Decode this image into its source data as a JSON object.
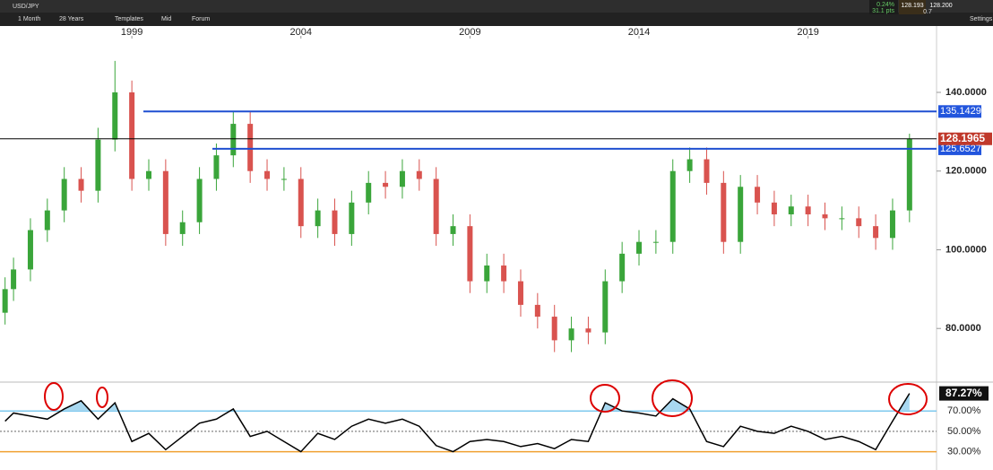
{
  "ui": {
    "symbol": "USD/JPY",
    "interval": "1 Month",
    "range": "28 Years",
    "menu": [
      "Templates",
      "Mid",
      "Forum"
    ],
    "change_pct": "0.24%",
    "change_pts": "31.1 pts",
    "bid": "128.193",
    "ask": "128.200",
    "spread": "0.7",
    "settings": "Settings"
  },
  "chart_data": [
    {
      "type": "candlestick",
      "x": [
        1995.25,
        1995.5,
        1996,
        1996.5,
        1997,
        1997.5,
        1998,
        1998.5,
        1999,
        1999.5,
        2000,
        2000.5,
        2001,
        2001.5,
        2002,
        2002.5,
        2003,
        2003.5,
        2004,
        2004.5,
        2005,
        2005.5,
        2006,
        2006.5,
        2007,
        2007.5,
        2008,
        2008.5,
        2009,
        2009.5,
        2010,
        2010.5,
        2011,
        2011.5,
        2012,
        2012.5,
        2013,
        2013.5,
        2014,
        2014.5,
        2015,
        2015.5,
        2016,
        2016.5,
        2017,
        2017.5,
        2018,
        2018.5,
        2019,
        2019.5,
        2020,
        2020.5,
        2021,
        2021.5,
        2022
      ],
      "open": [
        84,
        90,
        95,
        105,
        110,
        118,
        115,
        128,
        140,
        118,
        120,
        104,
        107,
        118,
        124,
        132,
        120,
        118,
        118,
        106,
        110,
        104,
        112,
        117,
        116,
        120,
        118,
        104,
        106,
        92,
        96,
        92,
        86,
        83,
        77,
        80,
        79,
        92,
        99,
        102,
        102,
        120,
        123,
        117,
        102,
        116,
        112,
        109,
        111,
        109,
        108,
        108,
        106,
        103,
        110
      ],
      "high": [
        93,
        98,
        108,
        113,
        121,
        121,
        131,
        148,
        143,
        123,
        123,
        110,
        121,
        127,
        135,
        135,
        123,
        121,
        121,
        113,
        113,
        115,
        120,
        120,
        123,
        123,
        121,
        109,
        109,
        99,
        99,
        95,
        89,
        86,
        83,
        83,
        95,
        102,
        105,
        105,
        123,
        126,
        126,
        120,
        119,
        119,
        115,
        114,
        114,
        112,
        111,
        111,
        109,
        113,
        129.5
      ],
      "low": [
        81,
        87,
        92,
        102,
        107,
        112,
        112,
        125,
        115,
        115,
        101,
        101,
        104,
        115,
        121,
        117,
        115,
        115,
        103,
        103,
        101,
        101,
        109,
        113,
        113,
        115,
        101,
        101,
        89,
        89,
        89,
        83,
        80,
        74,
        74,
        76,
        76,
        89,
        96,
        99,
        99,
        117,
        114,
        99,
        99,
        109,
        106,
        106,
        106,
        105,
        105,
        103,
        100,
        100,
        107
      ],
      "close": [
        90,
        95,
        105,
        110,
        118,
        115,
        128,
        140,
        118,
        120,
        104,
        107,
        118,
        124,
        132,
        120,
        118,
        118,
        106,
        110,
        104,
        112,
        117,
        116,
        120,
        118,
        104,
        106,
        92,
        96,
        92,
        86,
        83,
        77,
        80,
        79,
        92,
        99,
        102,
        102,
        120,
        123,
        117,
        102,
        116,
        112,
        109,
        111,
        109,
        108,
        108,
        106,
        103,
        110,
        128.2
      ],
      "up_color": "#3aa53a",
      "down_color": "#d9534f",
      "xlim": [
        1995.1,
        2022.8
      ],
      "xticks": [
        1999,
        2004,
        2009,
        2014,
        2019
      ],
      "ylim": [
        66.6,
        153.9
      ],
      "yticks": [
        {
          "value": 80,
          "label": "80.0000"
        },
        {
          "value": 100,
          "label": "100.0000"
        },
        {
          "value": 120,
          "label": "120.0000"
        },
        {
          "value": 140,
          "label": "140.0000"
        }
      ],
      "levels": [
        {
          "value": 135.1429,
          "color": "#1f4fd1"
        },
        {
          "value": 125.6527,
          "color": "#1f4fd1"
        },
        {
          "value": 128.1965,
          "color": "#c0392b"
        }
      ]
    },
    {
      "type": "line",
      "x": [
        1995.25,
        1995.5,
        1996,
        1996.5,
        1997,
        1997.5,
        1998,
        1998.5,
        1999,
        1999.5,
        2000,
        2000.5,
        2001,
        2001.5,
        2002,
        2002.5,
        2003,
        2003.5,
        2004,
        2004.5,
        2005,
        2005.5,
        2006,
        2006.5,
        2007,
        2007.5,
        2008,
        2008.5,
        2009,
        2009.5,
        2010,
        2010.5,
        2011,
        2011.5,
        2012,
        2012.5,
        2013,
        2013.5,
        2014,
        2014.5,
        2015,
        2015.5,
        2016,
        2016.5,
        2017,
        2017.5,
        2018,
        2018.5,
        2019,
        2019.5,
        2020,
        2020.5,
        2021,
        2021.5,
        2022
      ],
      "values": [
        60,
        68,
        65,
        62,
        72,
        80,
        62,
        78,
        40,
        48,
        32,
        45,
        58,
        62,
        72,
        45,
        50,
        40,
        30,
        48,
        42,
        55,
        62,
        58,
        62,
        55,
        36,
        30,
        40,
        42,
        40,
        35,
        38,
        33,
        42,
        40,
        78,
        70,
        68,
        65,
        82,
        72,
        40,
        35,
        55,
        50,
        48,
        55,
        50,
        42,
        45,
        40,
        32,
        60,
        87.27
      ],
      "color": "#000000",
      "fill_color": "#a8d8f0",
      "xlim": [
        1995.1,
        2022.8
      ],
      "ylim": [
        12,
        97.5
      ],
      "yticks": [
        {
          "value": 30,
          "label": "30.00%"
        },
        {
          "value": 50,
          "label": "50.00%"
        },
        {
          "value": 70,
          "label": "70.00%"
        }
      ],
      "tick_colors": [
        "#f0a030",
        "#999999",
        "#7ec8ee"
      ],
      "current": {
        "value": 87.27,
        "label": "87.27%"
      }
    }
  ]
}
